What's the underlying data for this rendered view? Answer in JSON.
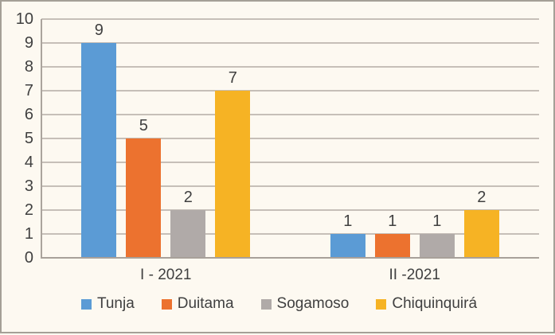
{
  "chart_data": {
    "type": "bar",
    "title": "",
    "categories": [
      "I - 2021",
      "II -2021"
    ],
    "series": [
      {
        "name": "Tunja",
        "color": "#5B9BD5",
        "values": [
          9,
          1
        ]
      },
      {
        "name": "Duitama",
        "color": "#EC722F",
        "values": [
          5,
          1
        ]
      },
      {
        "name": "Sogamoso",
        "color": "#B0AAA8",
        "values": [
          2,
          1
        ]
      },
      {
        "name": "Chiquinquirá",
        "color": "#F6B324",
        "values": [
          7,
          2
        ]
      }
    ],
    "ylim": [
      0,
      10
    ],
    "ytick_step": 1,
    "grid": true,
    "data_labels": true,
    "legend_position": "bottom"
  },
  "colors": {
    "background": "#FDF9F1",
    "gridline": "#C6BFB8",
    "axis_line": "#ABA49D",
    "frame_border": "#A5A097",
    "text": "#404040"
  }
}
